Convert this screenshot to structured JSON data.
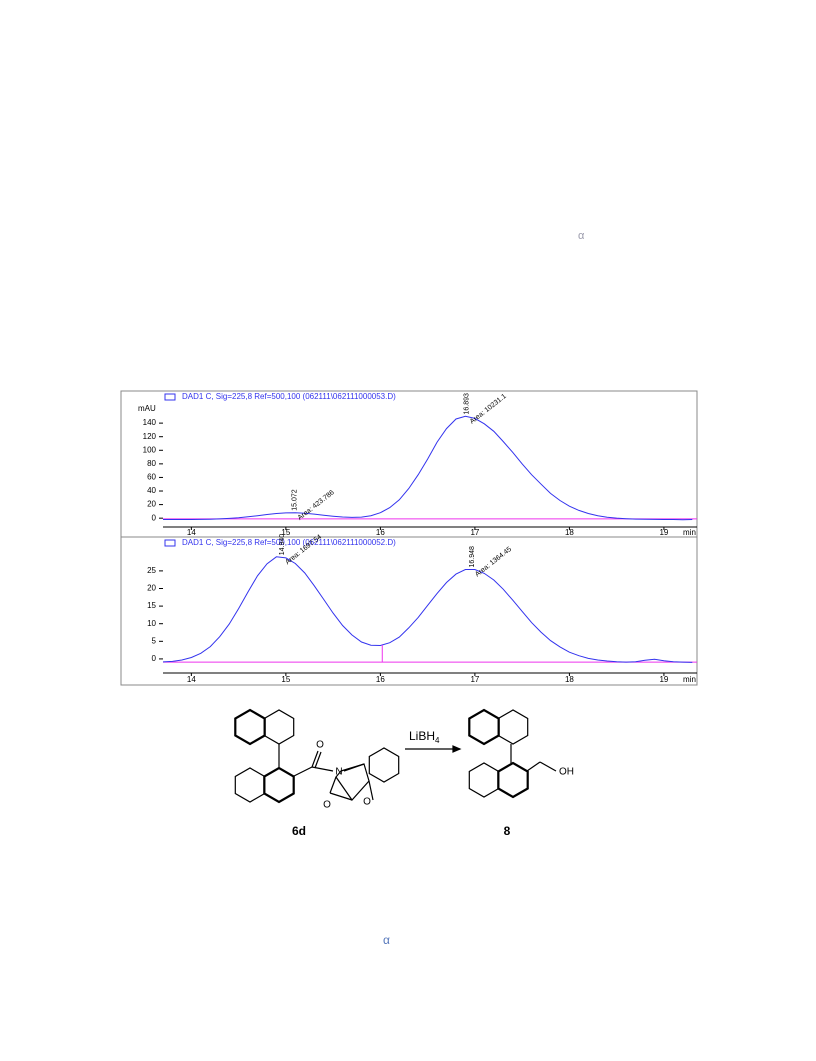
{
  "chart_data": [
    {
      "type": "line",
      "ylabel": "mAU",
      "xlabel": "min",
      "xlim": [
        13.7,
        19.35
      ],
      "xticks": [
        14,
        15,
        16,
        17,
        18,
        19
      ],
      "ylim": [
        -13,
        177
      ],
      "yticks": [
        0,
        20,
        40,
        60,
        80,
        100,
        120,
        140
      ],
      "x": [
        13.7,
        13.8,
        13.9,
        14.0,
        14.1,
        14.2,
        14.3,
        14.4,
        14.5,
        14.6,
        14.7,
        14.8,
        14.9,
        15.0,
        15.1,
        15.2,
        15.3,
        15.4,
        15.5,
        15.6,
        15.7,
        15.8,
        15.9,
        16.0,
        16.1,
        16.2,
        16.3,
        16.4,
        16.5,
        16.6,
        16.7,
        16.8,
        16.9,
        17.0,
        17.1,
        17.2,
        17.3,
        17.4,
        17.5,
        17.6,
        17.7,
        17.8,
        17.9,
        18.0,
        18.1,
        18.2,
        18.3,
        18.4,
        18.5,
        18.6,
        18.7,
        18.8,
        18.9,
        19.0,
        19.1,
        19.2,
        19.3
      ],
      "series": [
        {
          "name": "DAD1 C, Sig=225,8 Ref=500,100 (062111\\062111000053.D)",
          "color": "#3333ee",
          "values": [
            -2,
            -2,
            -2,
            -2,
            -1.8,
            -1.5,
            -1.1,
            -0.4,
            0.6,
            2.1,
            3.7,
            5.4,
            6.9,
            7.8,
            8.0,
            7.3,
            6.0,
            4.4,
            2.9,
            1.7,
            1.1,
            1.6,
            3.7,
            8.1,
            15.5,
            27,
            43.6,
            64,
            87,
            112,
            132,
            146,
            150,
            147,
            139,
            128,
            113,
            97,
            80,
            64,
            50,
            36.5,
            26,
            17.7,
            11.5,
            6.9,
            3.7,
            1.5,
            0.1,
            -0.8,
            -1.3,
            -1.6,
            -1.8,
            -2,
            -2,
            -2.2,
            -2
          ]
        }
      ],
      "baseline": {
        "color": "#ee33ee",
        "values": [
          -1,
          -1
        ]
      },
      "peaks": [
        {
          "x": 15.072,
          "label": "15.072",
          "area": "Area: 423.786"
        },
        {
          "x": 16.893,
          "label": "16.893",
          "area": "Area: 10231.1"
        }
      ]
    },
    {
      "type": "line",
      "xlabel": "min",
      "xlim": [
        13.7,
        19.35
      ],
      "xticks": [
        14,
        15,
        16,
        17,
        18,
        19
      ],
      "ylim": [
        -4,
        31.5
      ],
      "yticks": [
        0,
        5,
        10,
        15,
        20,
        25
      ],
      "x": [
        13.7,
        13.8,
        13.9,
        14.0,
        14.1,
        14.2,
        14.3,
        14.4,
        14.5,
        14.6,
        14.7,
        14.8,
        14.9,
        15.0,
        15.1,
        15.2,
        15.3,
        15.4,
        15.5,
        15.6,
        15.7,
        15.8,
        15.9,
        16.0,
        16.1,
        16.2,
        16.3,
        16.4,
        16.5,
        16.6,
        16.7,
        16.8,
        16.9,
        17.0,
        17.1,
        17.2,
        17.3,
        17.4,
        17.5,
        17.6,
        17.7,
        17.8,
        17.9,
        18.0,
        18.1,
        18.2,
        18.3,
        18.4,
        18.5,
        18.6,
        18.7,
        18.8,
        18.9,
        19.0,
        19.1,
        19.2,
        19.3
      ],
      "series": [
        {
          "name": "DAD1 C, Sig=225,8 Ref=500,100 (062111\\062111000052.D)",
          "color": "#3333ee",
          "values": [
            -0.85,
            -0.7,
            -0.3,
            0.4,
            1.6,
            3.5,
            6.3,
            9.9,
            14.3,
            19.1,
            23.6,
            27,
            29,
            28.7,
            27.1,
            24.4,
            20.8,
            16.9,
            13,
            9.5,
            6.8,
            4.8,
            3.9,
            3.8,
            4.6,
            6.2,
            8.8,
            11.8,
            15.2,
            18.6,
            21.7,
            24.1,
            25.4,
            25.4,
            24.3,
            22.4,
            19.8,
            16.7,
            13.5,
            10.3,
            7.6,
            5.2,
            3.4,
            1.9,
            0.9,
            0.15,
            -0.3,
            -0.6,
            -0.8,
            -0.9,
            -0.8,
            -0.4,
            -0.1,
            -0.5,
            -0.8,
            -0.9,
            -1.0
          ]
        }
      ],
      "baseline": {
        "color": "#ee33ee",
        "values": [
          -0.9,
          -0.9
        ]
      },
      "drop_lines": [
        16.02
      ],
      "peaks": [
        {
          "x": 14.94,
          "label": "14.940",
          "area": "Area: 1697.54"
        },
        {
          "x": 16.948,
          "label": "16.948",
          "area": "Area: 1364.45"
        }
      ]
    }
  ],
  "scheme": {
    "reagent": "LiBH",
    "reagent_sub": "4",
    "compounds": [
      "6d",
      "8"
    ],
    "atoms": [
      "O",
      "N",
      "O",
      "O",
      "OH"
    ]
  },
  "stray_marks": [
    "α",
    "α"
  ]
}
